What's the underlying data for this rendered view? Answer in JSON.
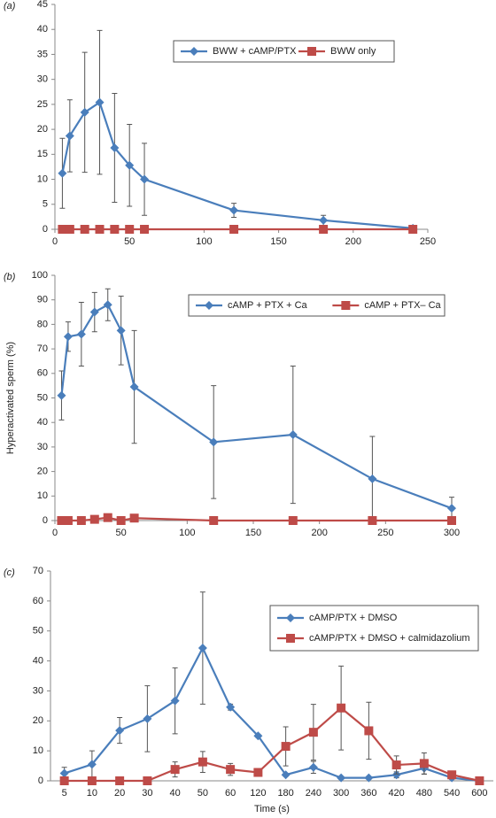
{
  "chart_data": [
    {
      "type": "line",
      "label": "(a)",
      "x": [
        5,
        10,
        20,
        30,
        40,
        50,
        60,
        120,
        180,
        240
      ],
      "xlim": [
        0,
        250
      ],
      "xticks": [
        0,
        50,
        100,
        150,
        200,
        250
      ],
      "ylim": [
        0,
        45
      ],
      "yticks": [
        0,
        5,
        10,
        15,
        20,
        25,
        30,
        35,
        40,
        45
      ],
      "series": [
        {
          "name": "BWW + cAMP/PTX",
          "color": "#4a7ebb",
          "marker": "diamond",
          "values": [
            11.2,
            18.7,
            23.4,
            25.4,
            16.3,
            12.8,
            10,
            3.8,
            1.8,
            0.2
          ],
          "errors": [
            7,
            7.2,
            12,
            14.4,
            10.9,
            8.2,
            7.2,
            1.4,
            1,
            0
          ]
        },
        {
          "name": "BWW only",
          "color": "#be4b48",
          "marker": "square",
          "values": [
            0,
            0,
            0,
            0,
            0,
            0,
            0,
            0,
            0,
            0
          ]
        }
      ]
    },
    {
      "type": "line",
      "label": "(b)",
      "y_label": "Hyperactivated sperm (%)",
      "x": [
        5,
        10,
        20,
        30,
        40,
        50,
        60,
        120,
        180,
        240,
        300
      ],
      "xlim": [
        0,
        300
      ],
      "xticks": [
        0,
        50,
        100,
        150,
        200,
        250,
        300
      ],
      "ylim": [
        0,
        100
      ],
      "yticks": [
        0,
        10,
        20,
        30,
        40,
        50,
        60,
        70,
        80,
        90,
        100
      ],
      "series": [
        {
          "name": "cAMP + PTX + Ca",
          "color": "#4a7ebb",
          "marker": "diamond",
          "values": [
            51,
            75,
            76,
            85,
            88,
            77.5,
            54.5,
            32,
            35,
            17,
            5
          ],
          "errors": [
            10,
            6,
            13,
            8,
            6.5,
            14,
            23,
            23,
            28,
            17.3,
            4.5
          ]
        },
        {
          "name": "cAMP + PTX– Ca",
          "color": "#be4b48",
          "marker": "square",
          "values": [
            0,
            0,
            0,
            0.5,
            1.2,
            0,
            1,
            0,
            0,
            0,
            0
          ]
        }
      ]
    },
    {
      "type": "line",
      "label": "(c)",
      "x_label": "Time (s)",
      "categories": [
        "5",
        "10",
        "20",
        "30",
        "40",
        "50",
        "60",
        "120",
        "180",
        "240",
        "300",
        "360",
        "420",
        "480",
        "540",
        "600"
      ],
      "ylim": [
        0,
        70
      ],
      "yticks": [
        0,
        10,
        20,
        30,
        40,
        50,
        60,
        70
      ],
      "series": [
        {
          "name": "cAMP/PTX + DMSO",
          "color": "#4a7ebb",
          "marker": "diamond",
          "values": [
            2.5,
            5.5,
            16.8,
            20.7,
            26.7,
            44.3,
            24.6,
            15,
            2,
            4.5,
            1,
            1,
            2,
            4.2,
            1,
            0
          ],
          "errors": [
            2,
            4.5,
            4.3,
            11,
            11,
            18.7,
            1,
            0.5,
            0.5,
            2,
            0.3,
            0.3,
            1,
            2,
            0.5,
            0
          ]
        },
        {
          "name": "cAMP/PTX + DMSO + calmidazolium",
          "color": "#be4b48",
          "marker": "square",
          "values": [
            0,
            0,
            0,
            0,
            3.8,
            6.3,
            3.8,
            2.8,
            11.5,
            16.2,
            24.3,
            16.7,
            5.3,
            5.8,
            2,
            0
          ],
          "errors": [
            0,
            0,
            0,
            0,
            2.5,
            3.5,
            2,
            1,
            6.5,
            9.3,
            14,
            9.5,
            3,
            3.5,
            1,
            0
          ]
        }
      ]
    }
  ]
}
